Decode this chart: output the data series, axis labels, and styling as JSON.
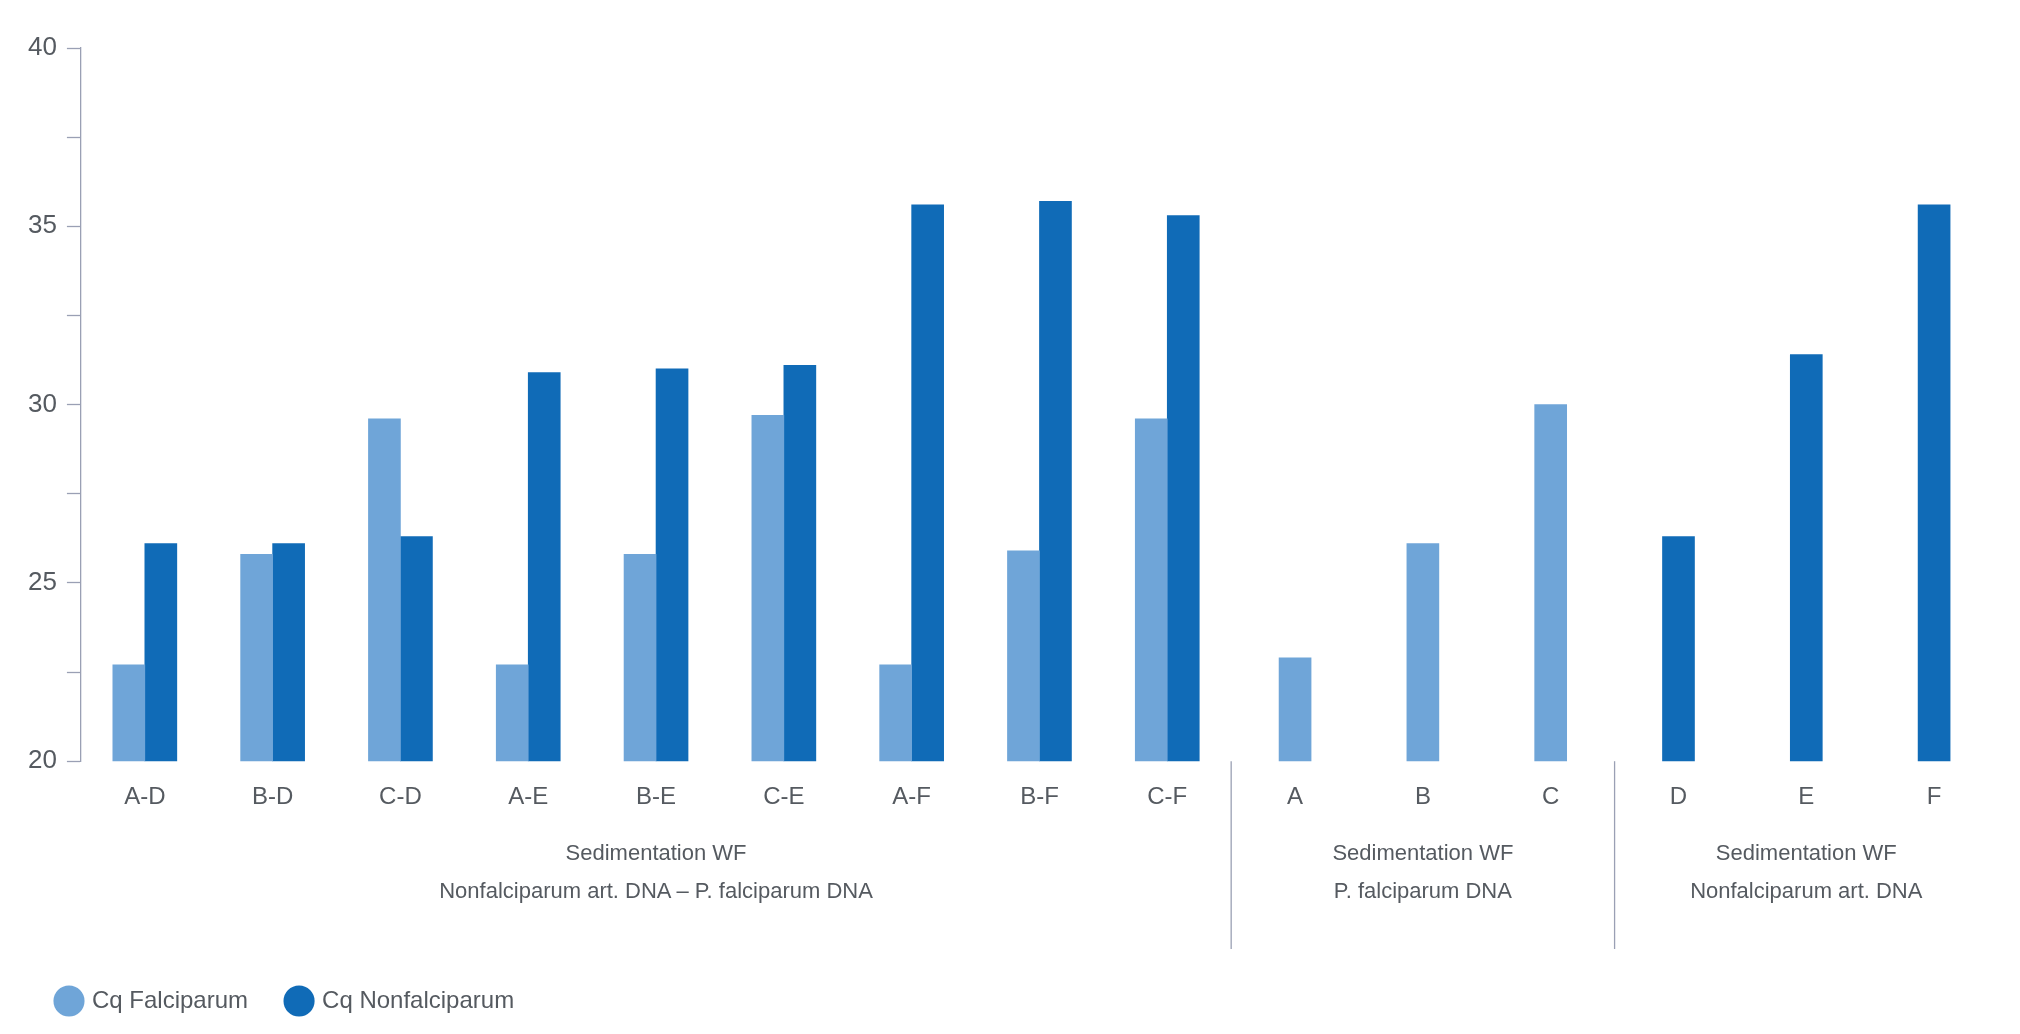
{
  "chart_data": {
    "type": "bar",
    "categories": [
      "A-D",
      "B-D",
      "C-D",
      "A-E",
      "B-E",
      "C-E",
      "A-F",
      "B-F",
      "C-F",
      "A",
      "B",
      "C",
      "D",
      "E",
      "F"
    ],
    "series": [
      {
        "name": "Cq Falciparum",
        "color": "#6fa5d8",
        "values": [
          22.7,
          25.8,
          29.6,
          22.7,
          25.8,
          29.7,
          22.7,
          25.9,
          29.6,
          22.9,
          26.1,
          30.0,
          null,
          null,
          null
        ]
      },
      {
        "name": "Cq Nonfalciparum",
        "color": "#106bb7",
        "values": [
          26.1,
          26.1,
          26.3,
          30.9,
          31.0,
          31.1,
          35.6,
          35.7,
          35.3,
          null,
          null,
          null,
          26.3,
          31.4,
          35.6
        ]
      }
    ],
    "ylim": [
      20,
      40
    ],
    "yticks": [
      20,
      {
        "value": 22.5,
        "label": null
      },
      25,
      {
        "value": 27.5,
        "label": null
      },
      30,
      {
        "value": 32.5,
        "label": null
      },
      35,
      {
        "value": 37.5,
        "label": null
      },
      40
    ],
    "annotations": [
      "Sedimentation WF\nNonfalciparum art. DNA – P. falciparum DNA",
      "Sedimentation WF\nP. falciparum DNA",
      "Sedimentation WF\nNonfalciparum art. DNA"
    ],
    "grid": false,
    "legend": "bottom left"
  }
}
